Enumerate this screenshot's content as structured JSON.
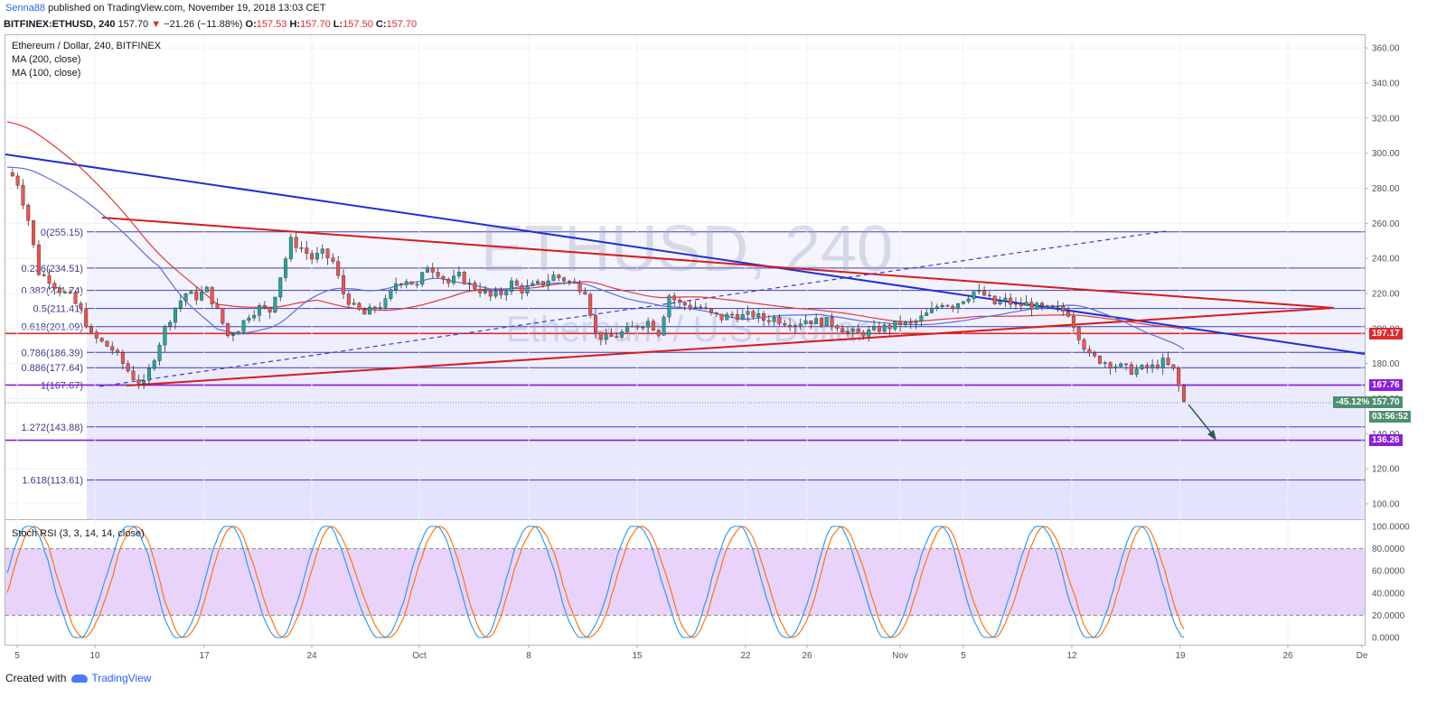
{
  "header": {
    "author": "Senna88",
    "published_text": "published on TradingView.com, November 19, 2018 13:03 CET"
  },
  "info": {
    "symbol": "BITFINEX:ETHUSD, 240",
    "last": "157.70",
    "arrow": "▼",
    "change": "−21.26 (−11.88%)",
    "o_label": "O:",
    "o_val": "157.53",
    "h_label": "H:",
    "h_val": "157.70",
    "l_label": "L:",
    "l_val": "157.50",
    "c_label": "C:",
    "c_val": "157.70"
  },
  "legend": {
    "title": "Ethereum / Dollar, 240, BITFINEX",
    "ma200": "MA (200, close)",
    "ma100": "MA (100, close)"
  },
  "watermark": {
    "symbol": "ETHUSD, 240",
    "name": "Ethereum / U.S. Dollar"
  },
  "rsi_label": "Stoch RSI (3, 3, 14, 14, close)",
  "price_tags": {
    "t197": "197.17",
    "t167": "167.76",
    "pct": "-45.12%",
    "last": "157.70",
    "countdown": "03:56:52",
    "t136": "136.26"
  },
  "footer": {
    "created_with": "Created with",
    "brand": "TradingView"
  },
  "colors": {
    "up": "#26a69a",
    "down": "#ef5350",
    "ma200": "#e53935",
    "ma100": "#5b6ee0",
    "trend_blue": "#1f2fd6",
    "trend_red": "#d81b1b",
    "fib_fill": "#c8c8ff",
    "rsi_k": "#2196f3",
    "rsi_d": "#ff6d00",
    "rsi_band": "#e3c8f9"
  },
  "chart_data": {
    "type": "line",
    "title": "Ethereum / Dollar, 240, BITFINEX",
    "x_ticks": [
      "5",
      "10",
      "17",
      "24",
      "Oct",
      "8",
      "15",
      "22",
      "26",
      "Nov",
      "5",
      "12",
      "19",
      "26",
      "De"
    ],
    "y_ticks": [
      "360.00",
      "340.00",
      "320.00",
      "300.00",
      "280.00",
      "260.00",
      "240.00",
      "220.00",
      "200.00",
      "180.00",
      "160.00",
      "140.00",
      "120.00",
      "100.00"
    ],
    "ylim": [
      90,
      365
    ],
    "fib_levels": [
      {
        "ratio": "0",
        "price": 255.15,
        "label": "0(255.15)"
      },
      {
        "ratio": "0.236",
        "price": 234.51,
        "label": "0.236(234.51)"
      },
      {
        "ratio": "0.382",
        "price": 221.74,
        "label": "0.382(221.74)"
      },
      {
        "ratio": "0.5",
        "price": 211.41,
        "label": "0.5(211.41)"
      },
      {
        "ratio": "0.618",
        "price": 201.09,
        "label": "0.618(201.09)"
      },
      {
        "ratio": "0.786",
        "price": 186.39,
        "label": "0.786(186.39)"
      },
      {
        "ratio": "0.886",
        "price": 177.64,
        "label": "0.886(177.64)"
      },
      {
        "ratio": "1",
        "price": 167.67,
        "label": "1(167.67)"
      },
      {
        "ratio": "1.272",
        "price": 143.88,
        "label": "1.272(143.88)"
      },
      {
        "ratio": "1.618",
        "price": 113.61,
        "label": "1.618(113.61)"
      }
    ],
    "series": [
      {
        "name": "ETHUSD",
        "points": [
          [
            0,
            289
          ],
          [
            0.5,
            287
          ],
          [
            1,
            283
          ],
          [
            2,
            262
          ],
          [
            3,
            232
          ],
          [
            4,
            228
          ],
          [
            5,
            222
          ],
          [
            6,
            218
          ],
          [
            7,
            210
          ],
          [
            8,
            196
          ],
          [
            9,
            192
          ],
          [
            10,
            188
          ],
          [
            11,
            180
          ],
          [
            12,
            172
          ],
          [
            13,
            168
          ],
          [
            14,
            184
          ],
          [
            15,
            200
          ],
          [
            16,
            212
          ],
          [
            17,
            220
          ],
          [
            18,
            218
          ],
          [
            19,
            222
          ],
          [
            20,
            210
          ],
          [
            21,
            196
          ],
          [
            22,
            200
          ],
          [
            23,
            208
          ],
          [
            24,
            212
          ],
          [
            25,
            210
          ],
          [
            26,
            230
          ],
          [
            27,
            250
          ],
          [
            28,
            246
          ],
          [
            29,
            240
          ],
          [
            30,
            243
          ],
          [
            31,
            238
          ],
          [
            32,
            220
          ],
          [
            33,
            212
          ],
          [
            34,
            208
          ],
          [
            35,
            212
          ],
          [
            36,
            215
          ],
          [
            37,
            226
          ],
          [
            38,
            228
          ],
          [
            39,
            224
          ],
          [
            40,
            236
          ],
          [
            41,
            232
          ],
          [
            42,
            226
          ],
          [
            43,
            230
          ],
          [
            44,
            225
          ],
          [
            45,
            222
          ],
          [
            46,
            218
          ],
          [
            47,
            220
          ],
          [
            48,
            226
          ],
          [
            49,
            222
          ],
          [
            50,
            224
          ],
          [
            51,
            226
          ],
          [
            52,
            230
          ],
          [
            53,
            228
          ],
          [
            54,
            225
          ],
          [
            55,
            222
          ],
          [
            56,
            197
          ],
          [
            57,
            194
          ],
          [
            58,
            196
          ],
          [
            59,
            199
          ],
          [
            60,
            202
          ],
          [
            61,
            204
          ],
          [
            62,
            198
          ],
          [
            63,
            219
          ],
          [
            64,
            214
          ],
          [
            65,
            213
          ],
          [
            66,
            212
          ],
          [
            67,
            208
          ],
          [
            68,
            206
          ],
          [
            69,
            208
          ],
          [
            70,
            207
          ],
          [
            71,
            208
          ],
          [
            72,
            205
          ],
          [
            73,
            206
          ],
          [
            74,
            204
          ],
          [
            75,
            203
          ],
          [
            76,
            205
          ],
          [
            77,
            204
          ],
          [
            78,
            204
          ],
          [
            79,
            202
          ],
          [
            80,
            198
          ],
          [
            81,
            197
          ],
          [
            82,
            198
          ],
          [
            83,
            200
          ],
          [
            84,
            201
          ],
          [
            85,
            203
          ],
          [
            86,
            202
          ],
          [
            87,
            206
          ],
          [
            88,
            210
          ],
          [
            89,
            215
          ],
          [
            90,
            213
          ],
          [
            91,
            217
          ],
          [
            92,
            221
          ],
          [
            93,
            219
          ],
          [
            94,
            214
          ],
          [
            95,
            216
          ],
          [
            96,
            213
          ],
          [
            97,
            214
          ],
          [
            98,
            212
          ],
          [
            99,
            211
          ],
          [
            100,
            211
          ],
          [
            101,
            209
          ],
          [
            102,
            196
          ],
          [
            103,
            184
          ],
          [
            104,
            182
          ],
          [
            105,
            180
          ],
          [
            106,
            178
          ],
          [
            107,
            176
          ],
          [
            108,
            177
          ],
          [
            109,
            178
          ],
          [
            110,
            181
          ],
          [
            111,
            176
          ],
          [
            112,
            158
          ]
        ]
      }
    ],
    "annotation_target": 136.26
  }
}
